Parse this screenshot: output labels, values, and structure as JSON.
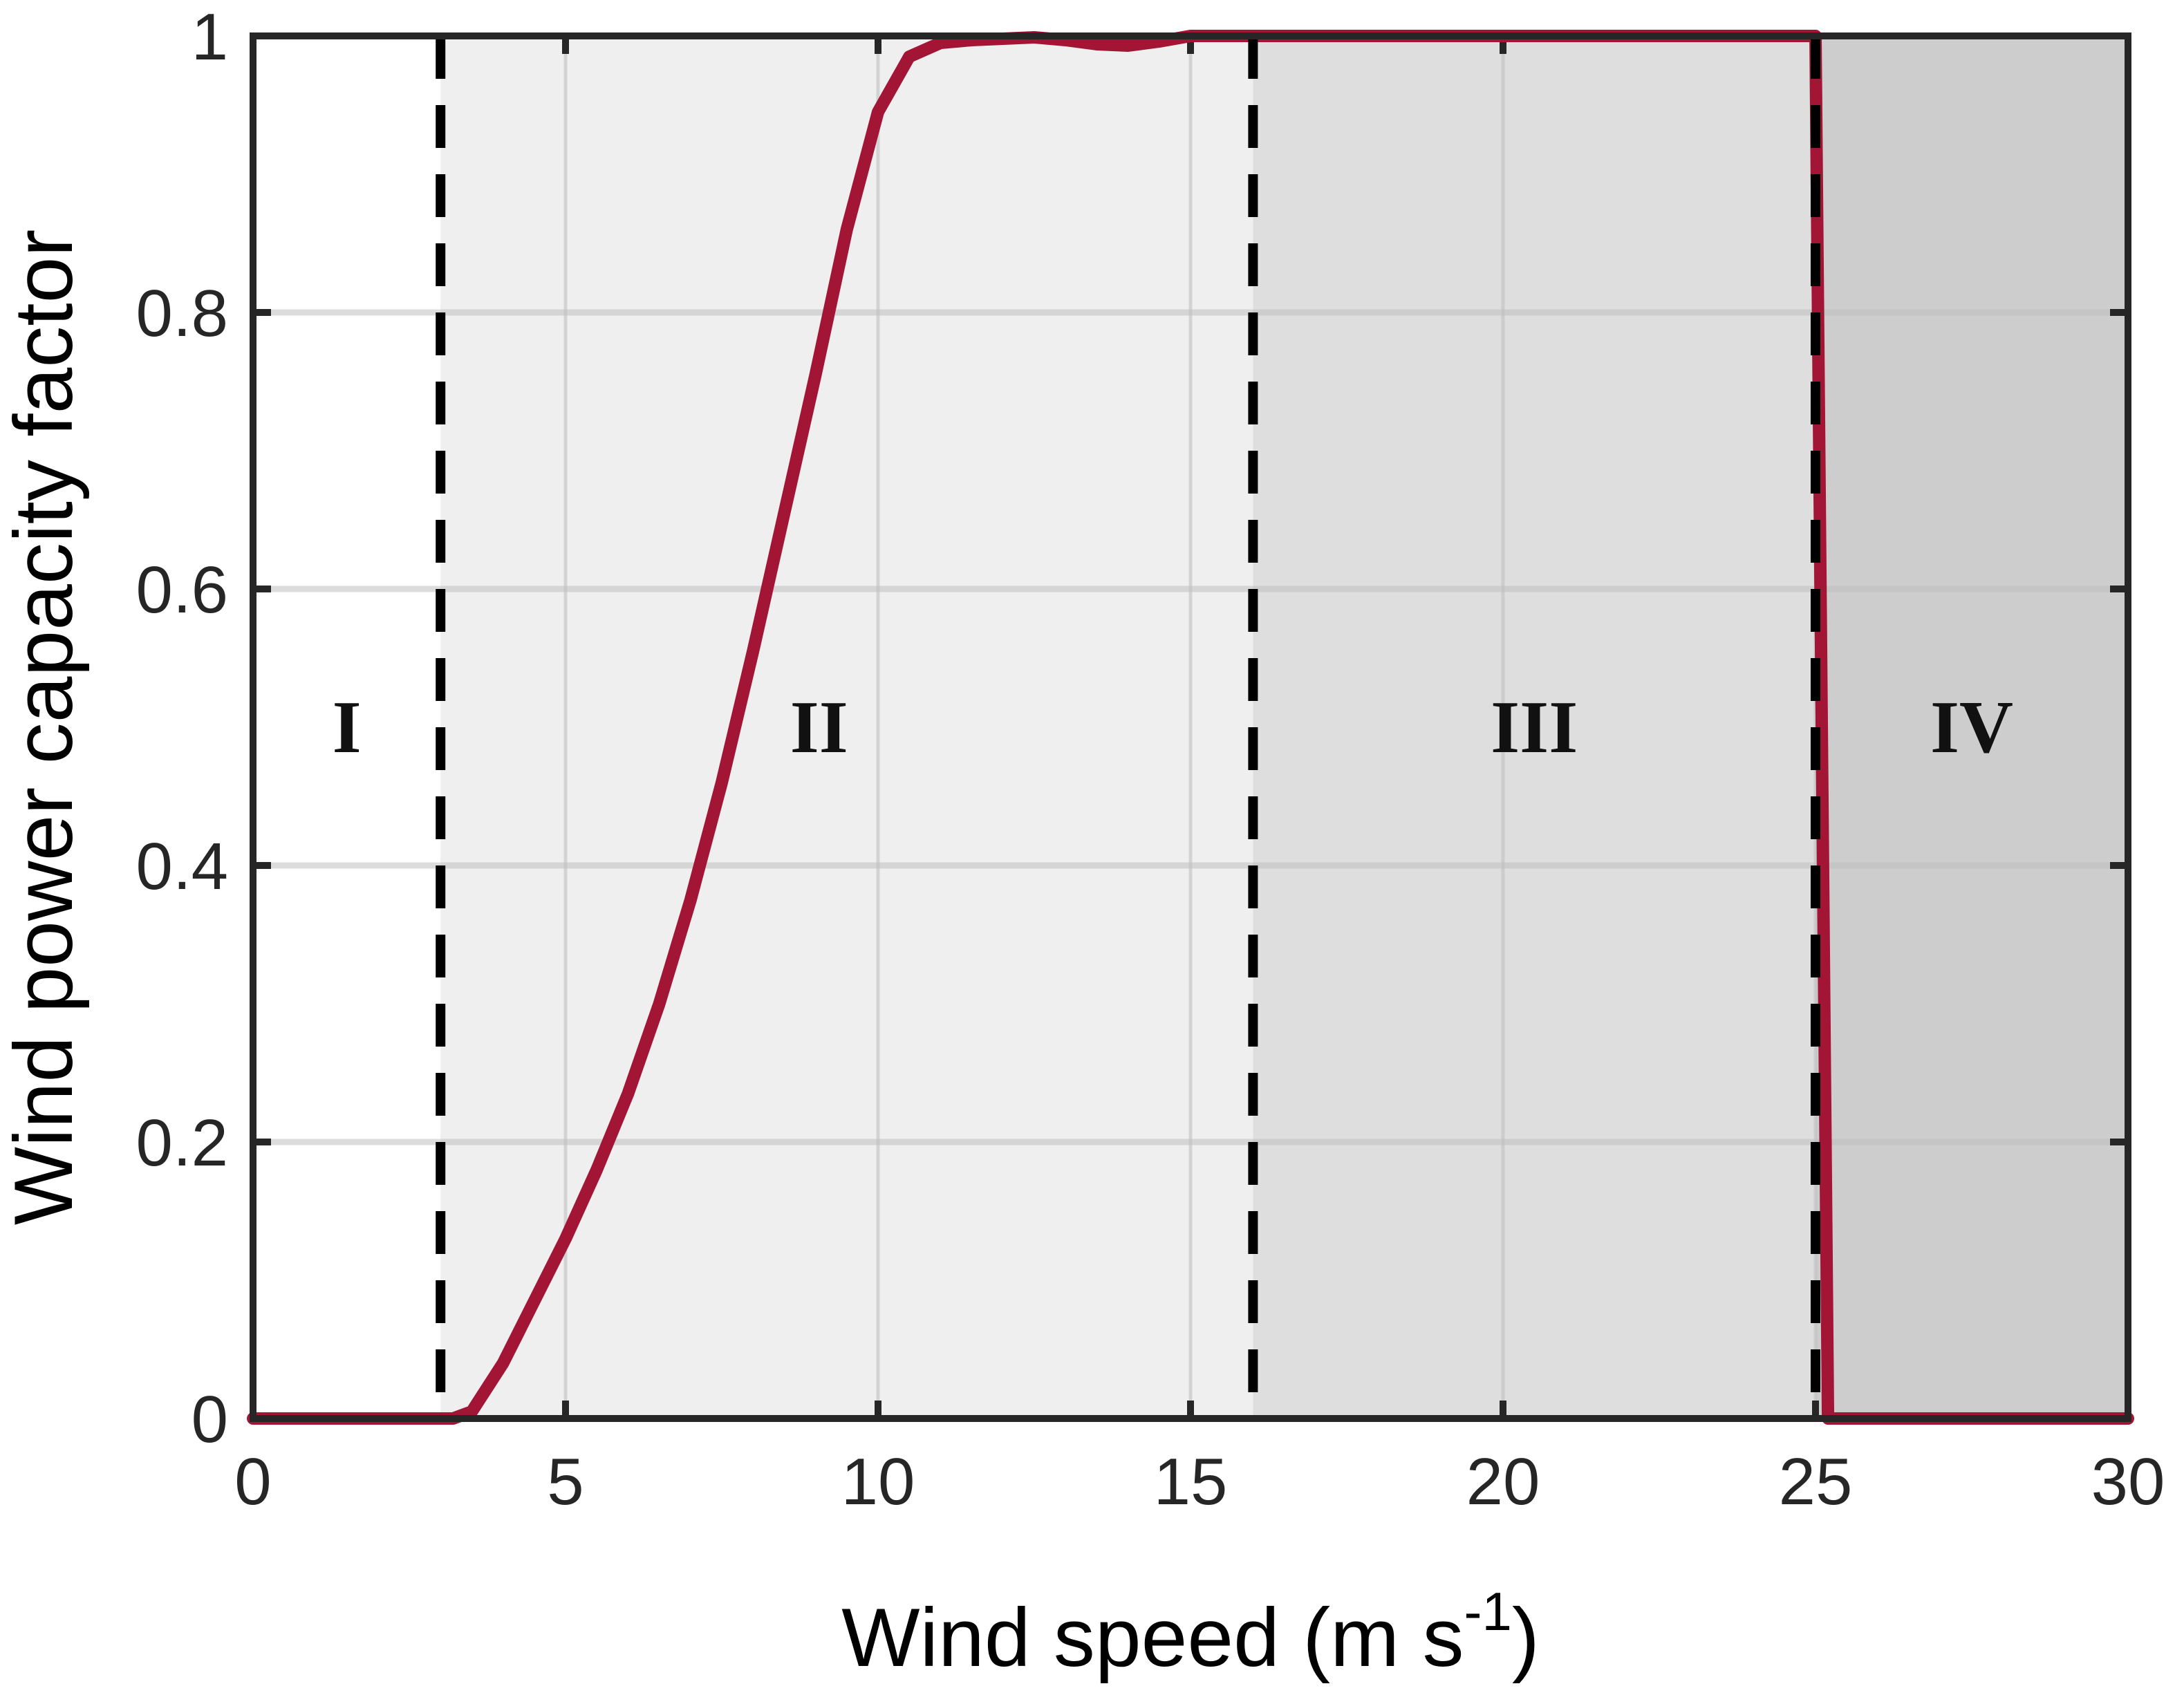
{
  "chart_data": {
    "type": "line",
    "xlabel": "Wind speed (m s",
    "xlabel_superscript": "-1",
    "xlabel_suffix": ")",
    "ylabel": "Wind power capacity factor",
    "xlim": [
      0,
      30
    ],
    "ylim": [
      0,
      1
    ],
    "xticks": [
      "0",
      "5",
      "10",
      "15",
      "20",
      "25",
      "30"
    ],
    "yticks": [
      "0",
      "0.2",
      "0.4",
      "0.6",
      "0.8",
      "1"
    ],
    "grid": true,
    "colors": {
      "curve": "#A31535",
      "region_I": "#FFFFFF",
      "region_II": "#EFEFEF",
      "region_III": "#DEDEDE",
      "region_IV": "#CDCDCD",
      "boundary": "#000000",
      "grid": "#BFBFBF",
      "axes": "#262626"
    },
    "regions": [
      {
        "label": "I",
        "x_start": 0,
        "x_end": 3
      },
      {
        "label": "II",
        "x_start": 3,
        "x_end": 16
      },
      {
        "label": "III",
        "x_start": 16,
        "x_end": 25
      },
      {
        "label": "IV",
        "x_start": 25,
        "x_end": 30
      }
    ],
    "boundaries": [
      3,
      16,
      25
    ],
    "series": [
      {
        "x": [
          0,
          3,
          3.2,
          3.5,
          4,
          4.5,
          5,
          5.5,
          6,
          6.5,
          7,
          7.5,
          8,
          8.5,
          9,
          9.5,
          10,
          10.5,
          11,
          11.5,
          12,
          12.5,
          13,
          13.5,
          14,
          14.5,
          15,
          15.5,
          16,
          20,
          25,
          25.2,
          27,
          30
        ],
        "y": [
          0,
          0,
          0,
          0.005,
          0.04,
          0.085,
          0.13,
          0.18,
          0.235,
          0.3,
          0.375,
          0.46,
          0.555,
          0.655,
          0.755,
          0.86,
          0.945,
          0.985,
          0.995,
          0.997,
          0.998,
          0.999,
          0.997,
          0.994,
          0.993,
          0.996,
          1,
          1,
          1,
          1,
          1,
          0,
          0,
          0
        ]
      }
    ]
  }
}
